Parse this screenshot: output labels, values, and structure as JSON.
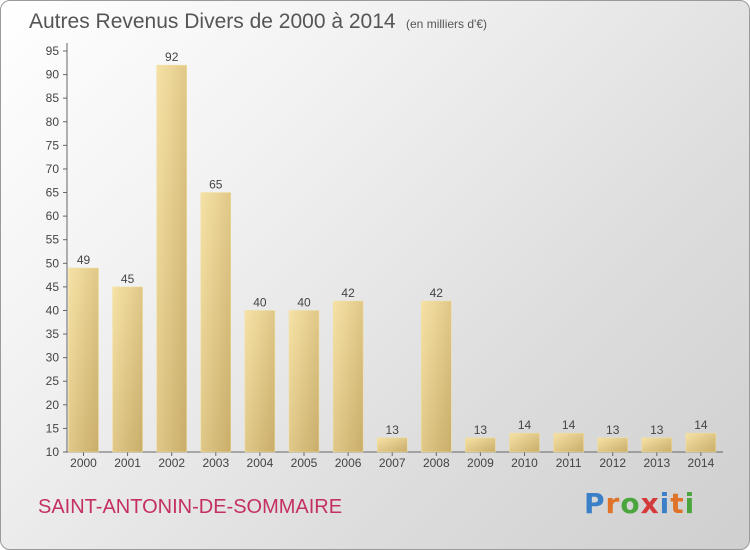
{
  "chart_data": {
    "type": "bar",
    "title": "Autres Revenus Divers de 2000 à 2014",
    "unit_note": "(en milliers d'€)",
    "categories": [
      "2000",
      "2001",
      "2002",
      "2003",
      "2004",
      "2005",
      "2006",
      "2007",
      "2008",
      "2009",
      "2010",
      "2011",
      "2012",
      "2013",
      "2014"
    ],
    "values": [
      49,
      45,
      92,
      65,
      40,
      40,
      42,
      13,
      42,
      13,
      14,
      14,
      13,
      13,
      14
    ],
    "ylim": [
      10,
      95
    ],
    "yticks": [
      10,
      15,
      20,
      25,
      30,
      35,
      40,
      45,
      50,
      55,
      60,
      65,
      70,
      75,
      80,
      85,
      90,
      95
    ],
    "grid": false,
    "bar_color": "#e7cc85"
  },
  "place_name": "SAINT-ANTONIN-DE-SOMMAIRE",
  "brand": {
    "text": "Proxiti",
    "letter_colors": [
      "#3a7fc8",
      "#e0732a",
      "#4aa63c",
      "#d43a3a",
      "#3a7fc8",
      "#e0732a",
      "#4aa63c"
    ]
  }
}
